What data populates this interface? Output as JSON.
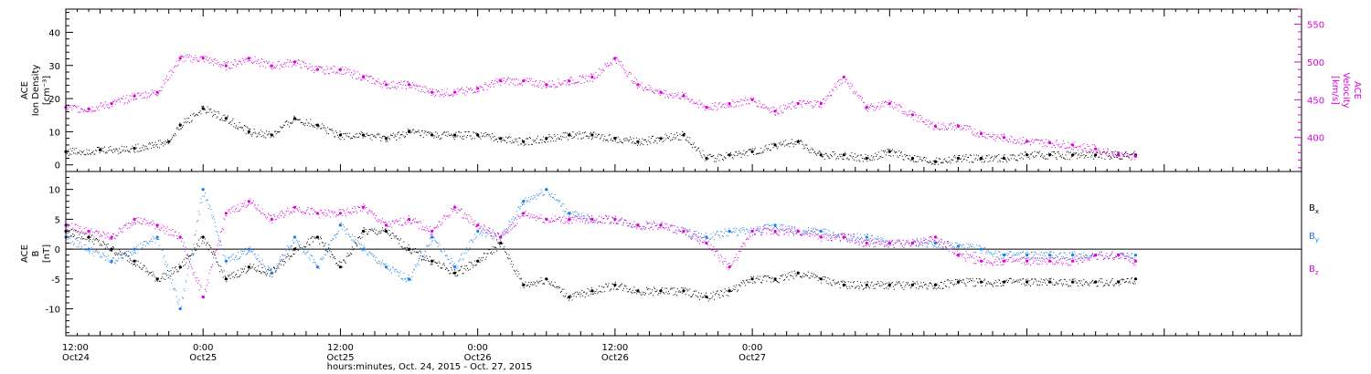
{
  "chart_data": [
    {
      "type": "scatter",
      "panel": "top",
      "ylabel_left": [
        "ACE",
        "Ion Density",
        "[cm⁻³]"
      ],
      "ylabel_right": [
        "ACE",
        "Velocity",
        "[km/s]"
      ],
      "ylim_left": [
        -2,
        47
      ],
      "ylim_right": [
        355,
        570
      ],
      "yticks_left": [
        0,
        10,
        20,
        30,
        40
      ],
      "yticks_right": [
        400,
        450,
        500,
        550
      ],
      "series": [
        {
          "color": "#000000",
          "axis": "left",
          "x": [
            0,
            3,
            6,
            9,
            10,
            12,
            14,
            16,
            18,
            20,
            22,
            24,
            26,
            28,
            30,
            32,
            34,
            36,
            38,
            40,
            42,
            44,
            46,
            48,
            50,
            52,
            54,
            56,
            58,
            60,
            62,
            64,
            66,
            68,
            70,
            72,
            74,
            76,
            78,
            80,
            82,
            84,
            86,
            88,
            90,
            92,
            93.5
          ],
          "y": [
            4,
            4.5,
            5,
            7,
            12,
            17,
            14,
            10,
            9,
            14,
            12,
            9,
            9,
            8,
            10,
            9,
            9,
            9,
            8,
            7,
            8,
            9,
            9,
            8,
            7,
            8,
            9,
            2,
            3,
            4,
            6,
            7,
            3,
            3,
            2,
            4,
            2,
            1,
            2,
            2,
            2,
            3,
            3,
            3,
            3,
            3,
            3
          ]
        },
        {
          "color": "#dd00dd",
          "axis": "right",
          "x": [
            0,
            2,
            4,
            6,
            8,
            10,
            12,
            14,
            16,
            18,
            20,
            22,
            24,
            26,
            28,
            30,
            32,
            34,
            36,
            38,
            40,
            42,
            44,
            46,
            48,
            50,
            52,
            54,
            56,
            58,
            60,
            62,
            64,
            66,
            68,
            70,
            72,
            74,
            76,
            78,
            80,
            82,
            84,
            86,
            88,
            90,
            92,
            93.5
          ],
          "y": [
            440,
            438,
            445,
            455,
            460,
            505,
            505,
            495,
            505,
            495,
            500,
            490,
            490,
            480,
            470,
            470,
            460,
            460,
            465,
            475,
            475,
            470,
            475,
            480,
            505,
            470,
            460,
            455,
            440,
            445,
            450,
            435,
            445,
            445,
            480,
            440,
            445,
            430,
            415,
            415,
            405,
            400,
            395,
            393,
            390,
            385,
            378,
            375
          ]
        }
      ]
    },
    {
      "type": "scatter",
      "panel": "bottom",
      "ylabel_left": [
        "ACE",
        "B",
        "[nT]"
      ],
      "ylim": [
        -14.5,
        13
      ],
      "yticks": [
        -10,
        -5,
        0,
        5,
        10
      ],
      "legend": [
        {
          "label": "B",
          "sub": "x",
          "color": "#000000"
        },
        {
          "label": "B",
          "sub": "y",
          "color": "#1a7ee6"
        },
        {
          "label": "B",
          "sub": "z",
          "color": "#dd00dd"
        }
      ],
      "series": [
        {
          "color": "#000000",
          "x": [
            0,
            2,
            4,
            6,
            8,
            10,
            12,
            14,
            16,
            18,
            20,
            22,
            24,
            26,
            28,
            30,
            32,
            34,
            36,
            38,
            40,
            42,
            44,
            46,
            48,
            50,
            52,
            54,
            56,
            58,
            60,
            62,
            64,
            66,
            68,
            70,
            72,
            74,
            76,
            78,
            80,
            82,
            84,
            86,
            88,
            90,
            92,
            93.5
          ],
          "y": [
            3,
            2,
            0,
            -2,
            -5,
            -3,
            2,
            -5,
            -3,
            -4,
            0,
            2,
            -3,
            3,
            3,
            0,
            -2,
            -4,
            -2,
            1,
            -6,
            -5,
            -8,
            -7,
            -6,
            -7,
            -7,
            -7,
            -8,
            -7,
            -5,
            -5,
            -4,
            -5,
            -6,
            -6,
            -6,
            -6,
            -6,
            -5.5,
            -5.5,
            -5.5,
            -5.5,
            -5.5,
            -5.5,
            -5.5,
            -5.5,
            -5
          ]
        },
        {
          "color": "#1a7ee6",
          "x": [
            0,
            2,
            4,
            6,
            8,
            10,
            12,
            14,
            16,
            18,
            20,
            22,
            24,
            26,
            28,
            30,
            32,
            34,
            36,
            38,
            40,
            42,
            44,
            46,
            48,
            50,
            52,
            54,
            56,
            58,
            60,
            62,
            64,
            66,
            68,
            70,
            72,
            74,
            76,
            78,
            80,
            82,
            84,
            86,
            88,
            90,
            92,
            93.5
          ],
          "y": [
            2,
            0,
            -2,
            0,
            2,
            -10,
            10,
            -2,
            0,
            -4,
            2,
            -3,
            4,
            0,
            -3,
            -5,
            2,
            -3,
            3,
            2,
            8,
            10,
            6,
            5,
            5,
            4,
            4,
            3,
            2,
            3,
            3,
            4,
            3,
            3,
            2,
            2,
            1,
            1,
            1,
            0.5,
            0,
            -1,
            -1,
            -1,
            -1,
            -1,
            -1,
            -1
          ]
        },
        {
          "color": "#dd00dd",
          "x": [
            0,
            2,
            4,
            6,
            8,
            10,
            12,
            14,
            16,
            18,
            20,
            22,
            24,
            26,
            28,
            30,
            32,
            34,
            36,
            38,
            40,
            42,
            44,
            46,
            48,
            50,
            52,
            54,
            56,
            58,
            60,
            62,
            64,
            66,
            68,
            70,
            72,
            74,
            76,
            78,
            80,
            82,
            84,
            86,
            88,
            90,
            92,
            93.5
          ],
          "y": [
            4,
            3,
            2,
            5,
            4,
            2,
            -8,
            6,
            8,
            5,
            7,
            6,
            6,
            7,
            4,
            5,
            3,
            7,
            4,
            2,
            6,
            5,
            5,
            5,
            5,
            4,
            4,
            3,
            1,
            -3,
            3,
            3,
            3,
            2,
            2,
            1,
            1,
            1,
            2,
            -1,
            -2,
            -2,
            -2,
            -2,
            -2,
            -1,
            -1,
            -2
          ]
        }
      ]
    },
    {
      "type": "axis",
      "xlabel": "hours:minutes, Oct. 24, 2015 - Oct. 27, 2015",
      "xlim": [
        0,
        108
      ],
      "xticks": [
        {
          "x": 0,
          "time": "12:00",
          "day": "Oct24"
        },
        {
          "x": 12,
          "time": "0:00",
          "day": "Oct25"
        },
        {
          "x": 24,
          "time": "12:00",
          "day": "Oct25"
        },
        {
          "x": 36,
          "time": "0:00",
          "day": "Oct26"
        },
        {
          "x": 48,
          "time": "12:00",
          "day": "Oct26"
        },
        {
          "x": 60,
          "time": "0:00",
          "day": "Oct27"
        }
      ]
    }
  ]
}
